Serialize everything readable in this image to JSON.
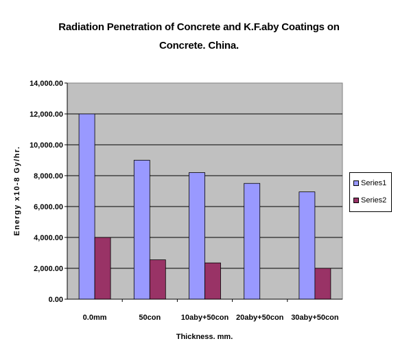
{
  "chart_data": {
    "type": "bar",
    "title_line1": "Radiation Penetration of Concrete and K.F.aby Coatings on",
    "title_line2": "Concrete. China.",
    "xlabel": "Thickness. mm.",
    "ylabel": "Energy x10-8 Gy/hr.",
    "categories": [
      "0.0mm",
      "50con",
      "10aby+50con",
      "20aby+50con",
      "30aby+50con"
    ],
    "yticks": [
      "0.00",
      "2,000.00",
      "4,000.00",
      "6,000.00",
      "8,000.00",
      "10,000.00",
      "12,000.00",
      "14,000.00"
    ],
    "ylim": [
      0,
      14000
    ],
    "grid": true,
    "legend_position": "right",
    "series": [
      {
        "name": "Series1",
        "color": "#9999ff",
        "values": [
          12000,
          9000,
          8200,
          7500,
          6950
        ]
      },
      {
        "name": "Series2",
        "color": "#993366",
        "values": [
          4000,
          2550,
          2350,
          null,
          2000
        ]
      }
    ],
    "plot_background": "#c0c0c0"
  }
}
